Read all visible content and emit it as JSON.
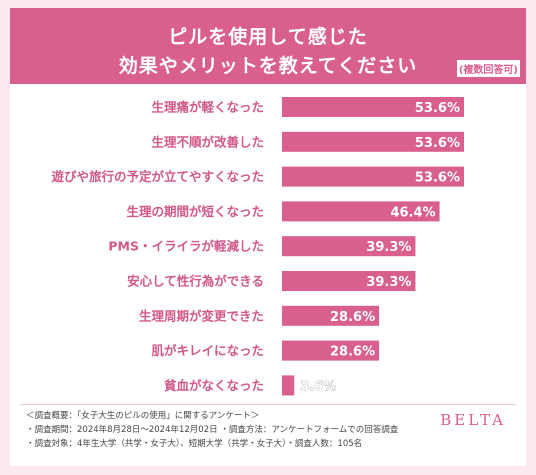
{
  "header": {
    "title_line1": "ピルを使用して感じた",
    "title_line2": "効果やメリットを教えてください",
    "note": "(複数回答可)"
  },
  "chart_data": {
    "type": "bar",
    "orientation": "horizontal",
    "categories": [
      "生理痛が軽くなった",
      "生理不順が改善した",
      "遊びや旅行の予定が立てやすくなった",
      "生理の期間が短くなった",
      "PMS・イライラが軽減した",
      "安心して性行為ができる",
      "生理周期が変更できた",
      "肌がキレイになった",
      "貧血がなくなった"
    ],
    "values": [
      53.6,
      53.6,
      53.6,
      46.4,
      39.3,
      39.3,
      28.6,
      28.6,
      3.6
    ],
    "value_labels": [
      "53.6%",
      "53.6%",
      "53.6%",
      "46.4%",
      "39.3%",
      "39.3%",
      "28.6%",
      "28.6%",
      "3.6%"
    ],
    "xlim": [
      0,
      53.6
    ],
    "bar_color": "#d95f8f",
    "grid": false,
    "legend": "none"
  },
  "footer": {
    "line1": "＜調査概要：「女子大生のピルの使用」に関するアンケート＞",
    "line2": "・調査期間：2024年8月28日〜2024年12月02日 ・調査方法：アンケートフォームでの回答調査",
    "line3": "・調査対象：4年生大学（共学・女子大）、短期大学（共学・女子大）・調査人数：105名",
    "brand": "BELTA"
  }
}
